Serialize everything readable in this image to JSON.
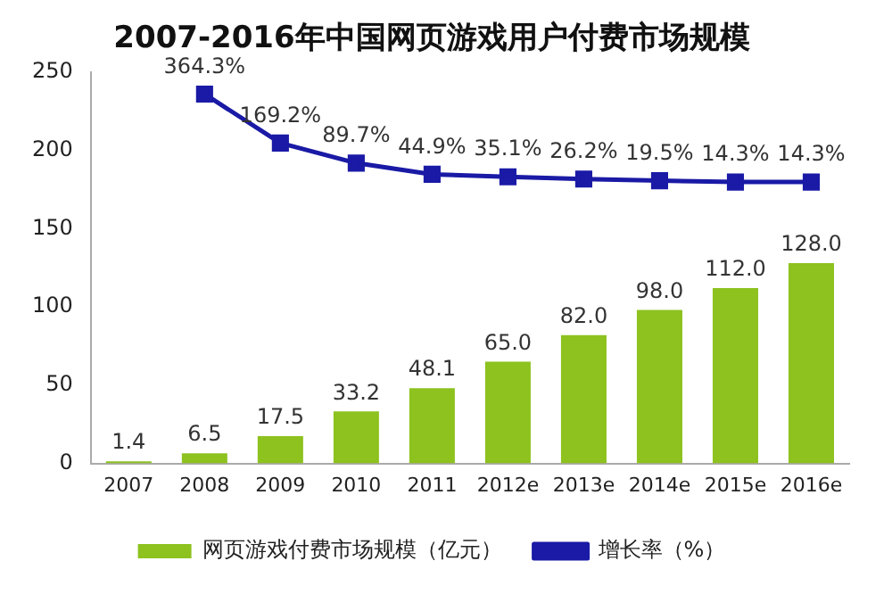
{
  "chart_data": {
    "type": "bar",
    "title": "2007-2016年中国网页游戏用户付费市场规模",
    "categories": [
      "2007",
      "2008",
      "2009",
      "2010",
      "2011",
      "2012e",
      "2013e",
      "2014e",
      "2015e",
      "2016e"
    ],
    "series": [
      {
        "name": "网页游戏付费市场规模（亿元）",
        "color": "#8dc21f",
        "values": [
          1.4,
          6.5,
          17.5,
          33.2,
          48.1,
          65.0,
          82.0,
          98.0,
          112.0,
          128.0
        ],
        "value_labels": [
          "1.4",
          "6.5",
          "17.5",
          "33.2",
          "48.1",
          "65.0",
          "82.0",
          "98.0",
          "112.0",
          "128.0"
        ]
      },
      {
        "name": "增长率（%）",
        "type": "line",
        "axis": "y2",
        "color": "#1a1aa6",
        "marker": "square",
        "values": [
          null,
          364.3,
          169.2,
          89.7,
          44.9,
          35.1,
          26.2,
          19.5,
          14.3,
          14.3
        ],
        "value_labels": [
          null,
          "364.3%",
          "169.2%",
          "89.7%",
          "44.9%",
          "35.1%",
          "26.2%",
          "19.5%",
          "14.3%",
          "14.3%"
        ]
      }
    ],
    "ylim": [
      0,
      250
    ],
    "yticks": [
      0,
      50,
      100,
      150,
      200,
      250
    ],
    "grid": false,
    "legend": "bottom"
  }
}
